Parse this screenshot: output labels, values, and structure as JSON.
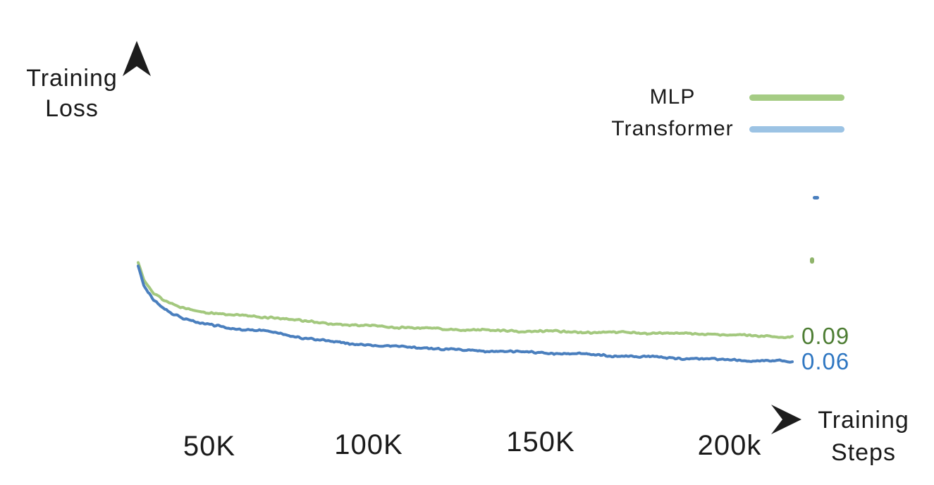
{
  "text_color": "#1a1a1a",
  "chart_data": {
    "type": "line",
    "title": "",
    "ylabel": "Training Loss",
    "ylabel_lines": [
      "Training",
      "Loss"
    ],
    "xlabel": "Training Steps",
    "xlabel_lines": [
      "Training",
      "Steps"
    ],
    "x_ticks": [
      "50K",
      "100K",
      "150K",
      "200k"
    ],
    "x_tick_steps": [
      50000,
      100000,
      150000,
      200000
    ],
    "x_range_steps": [
      0,
      215000
    ],
    "y_range_loss": [
      -0.013,
      0.444
    ],
    "grid": false,
    "legend_position": "top-right",
    "axis_style": {
      "gradient_start_color": "#a6a6a6",
      "gradient_end_color": "#1a1a1a",
      "arrow_color": "#1d1d1d"
    },
    "series": [
      {
        "name": "MLP",
        "line_color": "#a3c87e",
        "swatch_color": "#a5cc84",
        "final_label": "0.09",
        "final_value": 0.09,
        "final_label_color": "#4d7d33",
        "points_steps_k_loss": [
          [
            0,
            0.18
          ],
          [
            2,
            0.159
          ],
          [
            5,
            0.144
          ],
          [
            9,
            0.133
          ],
          [
            14,
            0.126
          ],
          [
            20,
            0.121
          ],
          [
            30,
            0.117
          ],
          [
            43,
            0.114
          ],
          [
            55,
            0.109
          ],
          [
            70,
            0.1045
          ],
          [
            90,
            0.101
          ],
          [
            110,
            0.0985
          ],
          [
            140,
            0.096
          ],
          [
            175,
            0.0945
          ],
          [
            195,
            0.0925
          ],
          [
            215,
            0.09
          ]
        ]
      },
      {
        "name": "Transformer",
        "line_color": "#4a7fbe",
        "swatch_color": "#9cc3e4",
        "final_label": "0.06",
        "final_value": 0.06,
        "final_label_color": "#2f77c2",
        "points_steps_k_loss": [
          [
            0,
            0.175
          ],
          [
            2,
            0.151
          ],
          [
            5,
            0.135
          ],
          [
            9,
            0.123
          ],
          [
            14,
            0.114
          ],
          [
            20,
            0.107
          ],
          [
            30,
            0.1005
          ],
          [
            43,
            0.0965
          ],
          [
            55,
            0.0885
          ],
          [
            70,
            0.0815
          ],
          [
            90,
            0.077
          ],
          [
            110,
            0.0735
          ],
          [
            140,
            0.07
          ],
          [
            160,
            0.0665
          ],
          [
            175,
            0.0645
          ],
          [
            195,
            0.062
          ],
          [
            215,
            0.06
          ]
        ]
      }
    ],
    "artifact_marks": [
      {
        "name": "stray-dash-blue",
        "color": "#4a7fbe"
      },
      {
        "name": "stray-dash-green",
        "color": "#8fb46a"
      }
    ]
  }
}
